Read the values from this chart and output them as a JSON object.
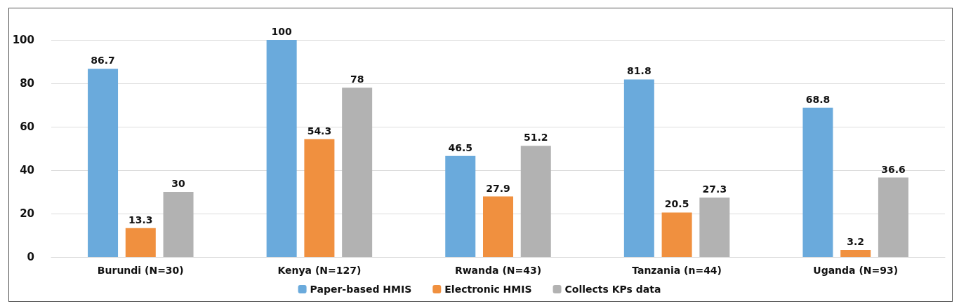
{
  "chart_data": {
    "type": "bar",
    "categories": [
      "Burundi (N=30)",
      "Kenya (N=127)",
      "Rwanda (N=43)",
      "Tanzania (n=44)",
      "Uganda (N=93)"
    ],
    "series": [
      {
        "name": "Paper-based HMIS",
        "color": "#6aaadc",
        "values": [
          86.7,
          100,
          46.5,
          81.8,
          68.8
        ]
      },
      {
        "name": "Electronic HMIS",
        "color": "#f0903f",
        "values": [
          13.3,
          54.3,
          27.9,
          20.5,
          3.2
        ]
      },
      {
        "name": "Collects KPs data",
        "color": "#b2b2b2",
        "values": [
          30,
          78,
          51.2,
          27.3,
          36.6
        ]
      }
    ],
    "ylim": [
      0,
      100
    ],
    "yticks": [
      0,
      20,
      40,
      60,
      80,
      100
    ],
    "grid": "y",
    "legend": "bottom",
    "data_labels": true
  }
}
